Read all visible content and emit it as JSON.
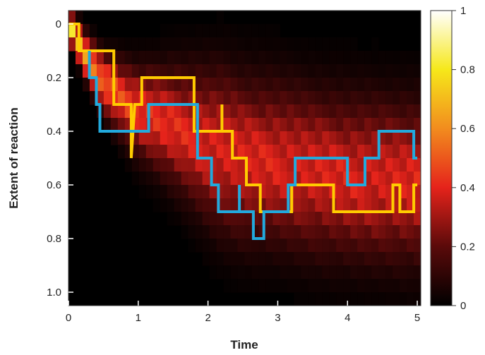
{
  "chart_data": {
    "type": "heatmap",
    "xlabel": "Time",
    "ylabel": "Extent of reaction",
    "xlim": [
      0,
      5.05
    ],
    "ylim": [
      -0.05,
      1.05
    ],
    "y_inverted": true,
    "x_ticks": [
      0,
      1,
      2,
      3,
      4,
      5
    ],
    "x_tick_labels": [
      "0",
      "1",
      "2",
      "3",
      "4",
      "5"
    ],
    "y_ticks": [
      0,
      0.2,
      0.4,
      0.6,
      0.8,
      1.0
    ],
    "y_tick_labels": [
      "0",
      "0.2",
      "0.4",
      "0.6",
      "0.8",
      "1.0"
    ],
    "colorbar": {
      "range": [
        0,
        1
      ],
      "ticks": [
        0,
        0.2,
        0.4,
        0.6,
        0.8,
        1
      ],
      "tick_labels": [
        "0",
        "0.2",
        "0.4",
        "0.6",
        "0.8",
        "1"
      ],
      "colormap": "hot"
    },
    "heatmap_mean": [
      [
        0.0,
        0.0
      ],
      [
        0.25,
        0.12
      ],
      [
        0.5,
        0.22
      ],
      [
        1.0,
        0.33
      ],
      [
        1.5,
        0.38
      ],
      [
        2.0,
        0.45
      ],
      [
        2.5,
        0.5
      ],
      [
        3.0,
        0.52
      ],
      [
        3.5,
        0.55
      ],
      [
        4.0,
        0.57
      ],
      [
        4.5,
        0.58
      ],
      [
        5.0,
        0.59
      ]
    ],
    "series": [
      {
        "color": "#ffcc00",
        "points": [
          [
            0.0,
            0.0
          ],
          [
            0.15,
            0.0
          ],
          [
            0.15,
            0.1
          ],
          [
            0.65,
            0.1
          ],
          [
            0.65,
            0.3
          ],
          [
            0.9,
            0.3
          ],
          [
            0.9,
            0.5
          ],
          [
            0.95,
            0.3
          ],
          [
            1.05,
            0.3
          ],
          [
            1.05,
            0.2
          ],
          [
            1.8,
            0.2
          ],
          [
            1.8,
            0.4
          ],
          [
            2.2,
            0.4
          ],
          [
            2.2,
            0.3
          ],
          [
            2.2,
            0.4
          ],
          [
            2.35,
            0.4
          ],
          [
            2.35,
            0.5
          ],
          [
            2.55,
            0.5
          ],
          [
            2.55,
            0.6
          ],
          [
            2.75,
            0.6
          ],
          [
            2.75,
            0.7
          ],
          [
            3.2,
            0.7
          ],
          [
            3.2,
            0.6
          ],
          [
            3.8,
            0.6
          ],
          [
            3.8,
            0.7
          ],
          [
            4.65,
            0.7
          ],
          [
            4.65,
            0.6
          ],
          [
            4.75,
            0.6
          ],
          [
            4.75,
            0.7
          ],
          [
            4.95,
            0.7
          ],
          [
            4.95,
            0.6
          ],
          [
            5.0,
            0.6
          ]
        ]
      },
      {
        "color": "#22aadd",
        "points": [
          [
            0.3,
            0.1
          ],
          [
            0.3,
            0.2
          ],
          [
            0.4,
            0.2
          ],
          [
            0.4,
            0.3
          ],
          [
            0.45,
            0.3
          ],
          [
            0.45,
            0.4
          ],
          [
            1.15,
            0.4
          ],
          [
            1.15,
            0.3
          ],
          [
            1.85,
            0.3
          ],
          [
            1.85,
            0.5
          ],
          [
            2.05,
            0.5
          ],
          [
            2.05,
            0.6
          ],
          [
            2.15,
            0.6
          ],
          [
            2.15,
            0.7
          ],
          [
            2.45,
            0.7
          ],
          [
            2.45,
            0.6
          ],
          [
            2.45,
            0.7
          ],
          [
            2.65,
            0.7
          ],
          [
            2.65,
            0.8
          ],
          [
            2.8,
            0.8
          ],
          [
            2.8,
            0.7
          ],
          [
            3.15,
            0.7
          ],
          [
            3.15,
            0.6
          ],
          [
            3.25,
            0.6
          ],
          [
            3.25,
            0.5
          ],
          [
            4.0,
            0.5
          ],
          [
            4.0,
            0.6
          ],
          [
            4.25,
            0.6
          ],
          [
            4.25,
            0.5
          ],
          [
            4.45,
            0.5
          ],
          [
            4.45,
            0.4
          ],
          [
            4.95,
            0.4
          ],
          [
            4.95,
            0.5
          ],
          [
            5.0,
            0.5
          ]
        ]
      }
    ]
  }
}
